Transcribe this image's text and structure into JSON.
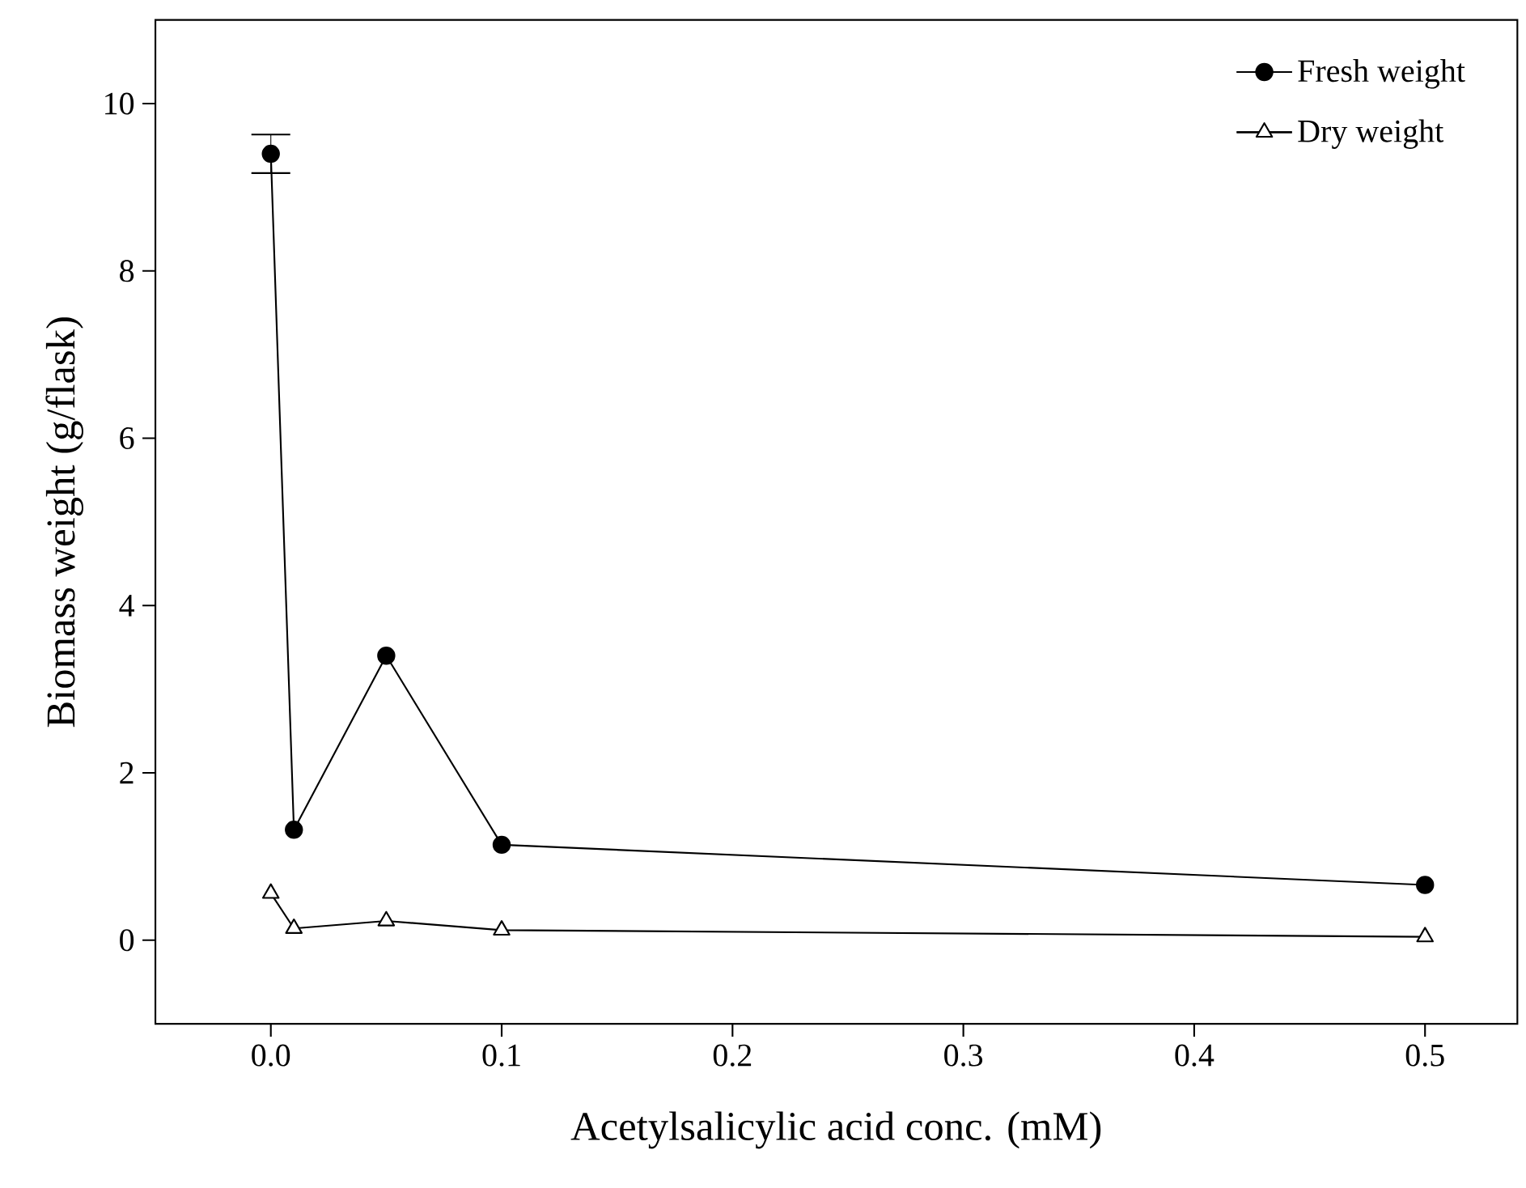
{
  "chart_data": {
    "type": "line",
    "xlabel": "Acetylsalicylic acid conc. (mM)",
    "ylabel": "Biomass weight (g/flask)",
    "x": [
      0,
      0.01,
      0.05,
      0.1,
      0.5
    ],
    "series": [
      {
        "name": "Fresh weight",
        "color": "#000000",
        "marker": "circle",
        "values": [
          9.4,
          1.32,
          3.4,
          1.14,
          0.66
        ],
        "errors": [
          0.23,
          null,
          null,
          null,
          null
        ]
      },
      {
        "name": "Dry weight",
        "color": "#000000",
        "marker": "triangle",
        "values": [
          0.56,
          0.14,
          0.23,
          0.12,
          0.04
        ]
      }
    ],
    "xlim": [
      -0.05,
      0.54
    ],
    "ylim": [
      -1,
      11
    ],
    "xticks": [
      {
        "value": 0,
        "label": "0.0"
      },
      {
        "value": 0.1,
        "label": "0.1"
      },
      {
        "value": 0.2,
        "label": "0.2"
      },
      {
        "value": 0.3,
        "label": "0.3"
      },
      {
        "value": 0.4,
        "label": "0.4"
      },
      {
        "value": 0.5,
        "label": "0.5"
      }
    ],
    "yticks": [
      0,
      2,
      4,
      6,
      8,
      10
    ],
    "legend": "top right",
    "grid": false,
    "line_style": "solid"
  }
}
